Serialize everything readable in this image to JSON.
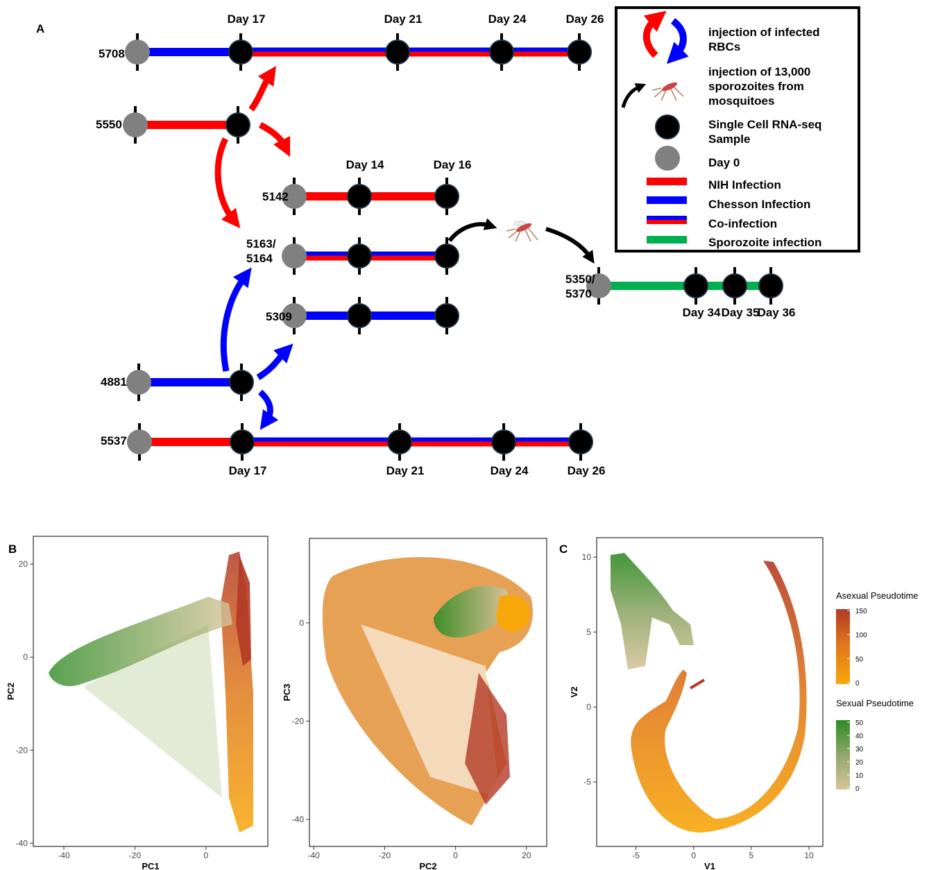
{
  "panel_a": {
    "label": "A",
    "mice": [
      {
        "label": [
          "5708"
        ],
        "days": [
          "Day 17",
          "Day 21",
          "Day 24",
          "Day 26"
        ]
      },
      {
        "label": [
          "5550"
        ]
      },
      {
        "label": [
          "5142"
        ],
        "days": [
          "Day 14",
          "Day 16"
        ]
      },
      {
        "label": [
          "5163/",
          "5164"
        ]
      },
      {
        "label": [
          "5309"
        ]
      },
      {
        "label": [
          "4881"
        ]
      },
      {
        "label": [
          "5537"
        ],
        "days": [
          "Day 17",
          "Day 21",
          "Day 24",
          "Day 26"
        ]
      },
      {
        "label": [
          "5350/",
          "5370"
        ],
        "days": [
          "Day 34",
          "Day 35",
          "Day 36"
        ]
      }
    ],
    "legend": [
      {
        "lines": [
          "injection of infected",
          "RBCs"
        ]
      },
      {
        "lines": [
          "injection of 13,000",
          "sporozoites from",
          "mosquitoes"
        ]
      },
      {
        "lines": [
          "Single Cell RNA-seq",
          "Sample"
        ]
      },
      {
        "lines": [
          "Day 0"
        ]
      },
      {
        "lines": [
          "NIH Infection"
        ]
      },
      {
        "lines": [
          "Chesson Infection"
        ]
      },
      {
        "lines": [
          "Co-infection"
        ]
      },
      {
        "lines": [
          "Sporozoite infection"
        ]
      }
    ]
  },
  "panel_b": {
    "label": "B",
    "plots": [
      {
        "xlabel": "PC1",
        "ylabel": "PC2",
        "xlim": [
          -48.6,
          17.4
        ],
        "ylim": [
          -40.7,
          26
        ],
        "xticks": [
          -40,
          -20,
          0
        ],
        "yticks": [
          20,
          0,
          -20,
          -40
        ]
      },
      {
        "xlabel": "PC2",
        "ylabel": "PC3",
        "xlim": [
          -41.2,
          25.7
        ],
        "ylim": [
          -45.5,
          17.2
        ],
        "xticks": [
          -40,
          -20,
          0,
          20
        ],
        "yticks": [
          0,
          -20,
          -40
        ]
      }
    ]
  },
  "panel_c": {
    "label": "C",
    "xlabel": "V1",
    "ylabel": "V2",
    "xlim": [
      -8.4,
      11.2
    ],
    "ylim": [
      -9.3,
      11.3
    ],
    "xticks": [
      -5,
      0,
      5,
      10
    ],
    "yticks": [
      10,
      5,
      0,
      -5
    ],
    "colorbars": [
      {
        "title": "Asexual Pseudotime",
        "lim": [
          0,
          150
        ],
        "ticks": [
          150,
          100,
          50,
          0
        ]
      },
      {
        "title": "Sexual Pseudotime",
        "lim": [
          0,
          50
        ],
        "ticks": [
          50,
          40,
          30,
          20,
          10,
          0
        ]
      }
    ]
  }
}
